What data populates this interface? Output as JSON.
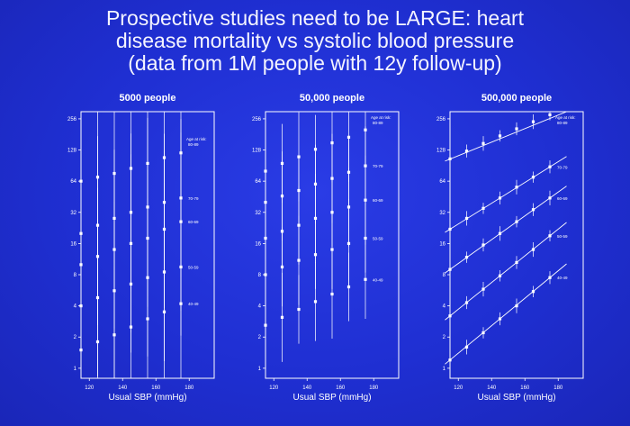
{
  "title": {
    "line1": "Prospective studies need to be LARGE: heart",
    "line2": "disease mortality vs systolic blood pressure",
    "line3": "(data from 1M people with 12y follow-up)"
  },
  "colors": {
    "background": "#1f2fd2",
    "foreground": "#ffffff"
  },
  "chart_data": [
    {
      "type": "scatter",
      "title": "5000 people",
      "xlabel": "Usual SBP (mmHg)",
      "ylabel": "",
      "xlim": [
        115,
        195
      ],
      "ylim": [
        0.8,
        300
      ],
      "yscale": "log2",
      "xticks": [
        "120",
        "140",
        "160",
        "180"
      ],
      "yticks": [
        "1",
        "2",
        "4",
        "8",
        "16",
        "32",
        "64",
        "128",
        "256"
      ],
      "annotations": [
        "Age at risk:",
        "80-89",
        "70-79",
        "60-69",
        "50-59",
        "40-49"
      ],
      "series": [
        {
          "x": [
            115,
            125,
            135,
            145,
            155,
            165,
            175
          ],
          "y": [
            64,
            70,
            76,
            85,
            95,
            108,
            120
          ]
        },
        {
          "x": [
            115,
            125,
            135,
            145,
            155,
            165,
            175
          ],
          "y": [
            20,
            24,
            28,
            32,
            36,
            40,
            44
          ]
        },
        {
          "x": [
            115,
            125,
            135,
            145,
            155,
            165,
            175
          ],
          "y": [
            10,
            12,
            14,
            16,
            18,
            22,
            26
          ]
        },
        {
          "x": [
            115,
            125,
            135,
            145,
            155,
            165,
            175
          ],
          "y": [
            4,
            4.8,
            5.6,
            6.5,
            7.5,
            8.5,
            9.5
          ]
        },
        {
          "x": [
            115,
            125,
            135,
            145,
            155,
            165,
            175
          ],
          "y": [
            1.5,
            1.8,
            2.1,
            2.5,
            3,
            3.5,
            4.2
          ]
        }
      ]
    },
    {
      "type": "scatter",
      "title": "50,000 people",
      "xlabel": "Usual SBP (mmHg)",
      "ylabel": "",
      "xlim": [
        115,
        195
      ],
      "ylim": [
        0.8,
        300
      ],
      "yscale": "log2",
      "xticks": [
        "120",
        "140",
        "160",
        "180"
      ],
      "yticks": [
        "1",
        "2",
        "4",
        "8",
        "16",
        "32",
        "64",
        "128",
        "256"
      ],
      "annotations": [
        "Age at risk:",
        "80-89",
        "70-79",
        "60-69",
        "50-59",
        "40-49"
      ],
      "series": [
        {
          "x": [
            115,
            125,
            135,
            145,
            155,
            165,
            175
          ],
          "y": [
            80,
            95,
            110,
            130,
            150,
            170,
            200
          ]
        },
        {
          "x": [
            115,
            125,
            135,
            145,
            155,
            165,
            175
          ],
          "y": [
            40,
            46,
            52,
            60,
            68,
            78,
            90
          ]
        },
        {
          "x": [
            115,
            125,
            135,
            145,
            155,
            165,
            175
          ],
          "y": [
            18,
            21,
            24,
            28,
            32,
            36,
            42
          ]
        },
        {
          "x": [
            115,
            125,
            135,
            145,
            155,
            165,
            175
          ],
          "y": [
            8,
            9.5,
            11,
            12.5,
            14,
            16,
            18
          ]
        },
        {
          "x": [
            115,
            125,
            135,
            145,
            155,
            165,
            175
          ],
          "y": [
            2.6,
            3.1,
            3.7,
            4.4,
            5.2,
            6.1,
            7.2
          ]
        }
      ]
    },
    {
      "type": "scatter",
      "title": "500,000 people",
      "xlabel": "Usual SBP (mmHg)",
      "ylabel": "",
      "xlim": [
        115,
        195
      ],
      "ylim": [
        0.8,
        300
      ],
      "yscale": "log2",
      "xticks": [
        "120",
        "140",
        "160",
        "180"
      ],
      "yticks": [
        "1",
        "2",
        "4",
        "8",
        "16",
        "32",
        "64",
        "128",
        "256"
      ],
      "annotations": [
        "Age at risk:",
        "80-89",
        "70-79",
        "60-69",
        "50-59",
        "40-49"
      ],
      "series": [
        {
          "x": [
            115,
            125,
            135,
            145,
            155,
            165,
            175
          ],
          "y": [
            105,
            125,
            148,
            175,
            205,
            240,
            280
          ]
        },
        {
          "x": [
            115,
            125,
            135,
            145,
            155,
            165,
            175
          ],
          "y": [
            22,
            28,
            35,
            44,
            56,
            70,
            88
          ]
        },
        {
          "x": [
            115,
            125,
            135,
            145,
            155,
            165,
            175
          ],
          "y": [
            9,
            11.8,
            15.5,
            20,
            26,
            34,
            44
          ]
        },
        {
          "x": [
            115,
            125,
            135,
            145,
            155,
            165,
            175
          ],
          "y": [
            3.2,
            4.3,
            5.8,
            7.8,
            10.5,
            14,
            19
          ]
        },
        {
          "x": [
            115,
            125,
            135,
            145,
            155,
            165,
            175
          ],
          "y": [
            1.2,
            1.6,
            2.2,
            3,
            4,
            5.5,
            7.5
          ]
        }
      ]
    }
  ]
}
